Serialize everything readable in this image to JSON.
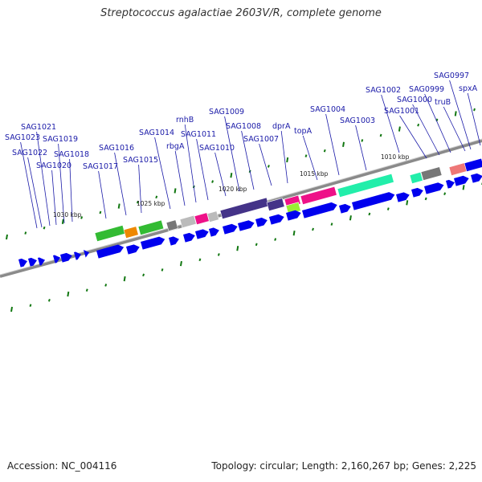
{
  "title": "Streptococcus agalactiae 2603V/R, complete genome",
  "footer": {
    "accession": "Accession: NC_004116",
    "topology": "Topology: circular; Length: 2,160,267 bp; Genes: 2,225"
  },
  "scale_labels": [
    "1030 kbp",
    "1025 kbp",
    "1020 kbp",
    "1015 kbp",
    "1010 kbp"
  ],
  "gene_labels": [
    "SAG1023",
    "SAG1022",
    "SAG1021",
    "SAG1020",
    "SAG1019",
    "SAG1018",
    "SAG1017",
    "SAG1016",
    "SAG1015",
    "SAG1014",
    "rbgA",
    "rnhB",
    "SAG1011",
    "SAG1010",
    "SAG1009",
    "SAG1008",
    "SAG1007",
    "dprA",
    "topA",
    "SAG1004",
    "SAG1003",
    "SAG1002",
    "SAG1001",
    "SAG1000",
    "SAG0999",
    "truB",
    "SAG0997",
    "spxA"
  ],
  "colors": {
    "cds": "#0000ee",
    "green": "#33bb33",
    "orange": "#ee8800",
    "gray": "#777777",
    "light_gray": "#bbbbbb",
    "pink": "#ee1188",
    "slate": "#443388",
    "teal": "#22eeaa",
    "salmon": "#ee7777",
    "lime": "#99ee33",
    "tick": "#117711",
    "label": "#1a1aa8"
  }
}
